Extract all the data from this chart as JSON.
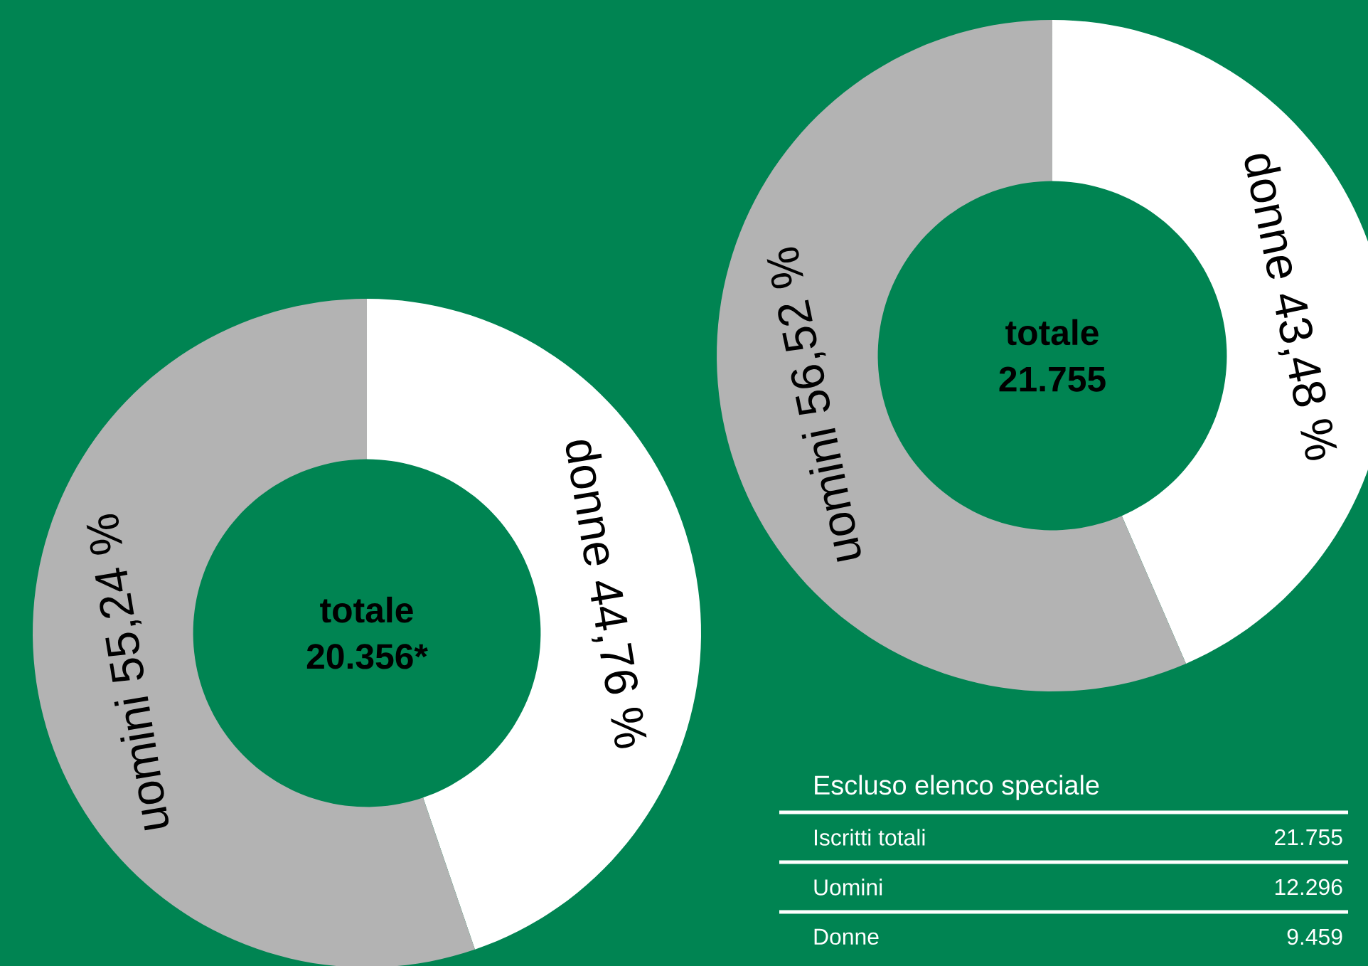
{
  "chart_data": [
    {
      "type": "donut",
      "categories": [
        "donne",
        "uomini"
      ],
      "values": [
        44.76,
        55.24
      ],
      "colors": [
        "#ffffff",
        "#b3b3b3"
      ],
      "value_labels": [
        "44,76 %",
        "55,24 %"
      ],
      "annotations": [
        "totale",
        "20.356*"
      ]
    },
    {
      "type": "donut",
      "categories": [
        "donne",
        "uomini"
      ],
      "values": [
        43.48,
        56.52
      ],
      "colors": [
        "#ffffff",
        "#b3b3b3"
      ],
      "value_labels": [
        "43,48 %",
        "56,52 %"
      ],
      "annotations": [
        "totale",
        "21.755"
      ]
    },
    {
      "type": "other",
      "title": "Escluso elenco speciale",
      "categories": [
        "Iscritti totali",
        "Uomini",
        "Donne"
      ],
      "values": [
        21755,
        12296,
        9459
      ],
      "value_labels": [
        "21.755",
        "12.296",
        "9.459"
      ]
    }
  ]
}
